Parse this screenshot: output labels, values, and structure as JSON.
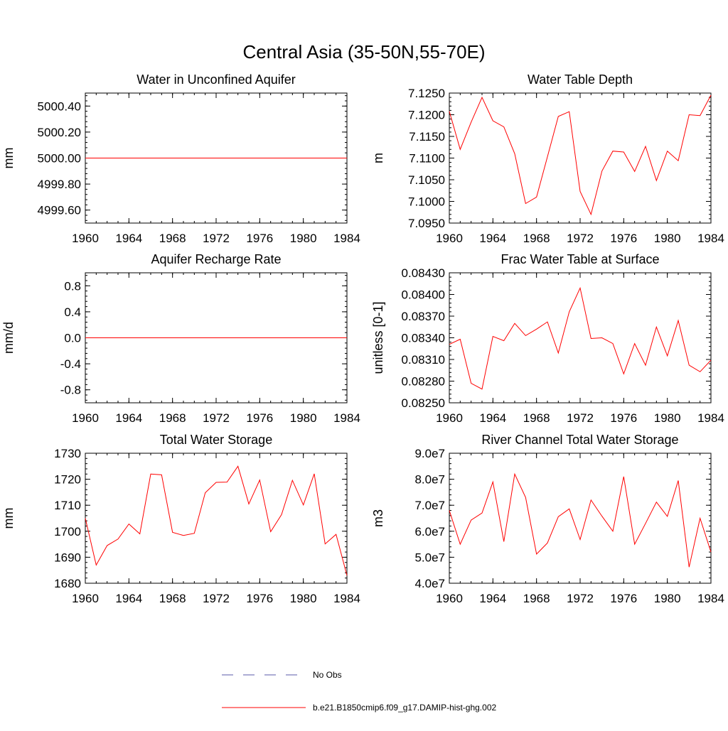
{
  "figure": {
    "title": "Central Asia (35-50N,55-70E)"
  },
  "legend": {
    "entries": [
      {
        "label": "No Obs",
        "color": "#5a5aa8",
        "style": "dashed"
      },
      {
        "label": "b.e21.B1850cmip6.f09_g17.DAMIP-hist-ghg.002",
        "color": "#ff0000",
        "style": "solid"
      }
    ]
  },
  "chart_data": [
    {
      "type": "line",
      "title": "Water in Unconfined Aquifer",
      "ylabel": "mm",
      "xlim": [
        1960,
        1984
      ],
      "ylim": [
        4999.5,
        5000.5
      ],
      "xticks": [
        1960,
        1964,
        1968,
        1972,
        1976,
        1980,
        1984
      ],
      "yticks": [
        4999.6,
        4999.8,
        5000.0,
        5000.2,
        5000.4
      ],
      "ytick_labels": [
        "4999.60",
        "4999.80",
        "5000.00",
        "5000.20",
        "5000.40"
      ],
      "series": [
        {
          "color": "#ff0000",
          "x": [
            1960,
            1961,
            1962,
            1963,
            1964,
            1965,
            1966,
            1967,
            1968,
            1969,
            1970,
            1971,
            1972,
            1973,
            1974,
            1975,
            1976,
            1977,
            1978,
            1979,
            1980,
            1981,
            1982,
            1983,
            1984
          ],
          "y": [
            5000,
            5000,
            5000,
            5000,
            5000,
            5000,
            5000,
            5000,
            5000,
            5000,
            5000,
            5000,
            5000,
            5000,
            5000,
            5000,
            5000,
            5000,
            5000,
            5000,
            5000,
            5000,
            5000,
            5000,
            5000
          ]
        }
      ]
    },
    {
      "type": "line",
      "title": "Water Table Depth",
      "ylabel": "m",
      "xlim": [
        1960,
        1984
      ],
      "ylim": [
        7.095,
        7.125
      ],
      "xticks": [
        1960,
        1964,
        1968,
        1972,
        1976,
        1980,
        1984
      ],
      "yticks": [
        7.095,
        7.1,
        7.105,
        7.11,
        7.115,
        7.12,
        7.125
      ],
      "ytick_labels": [
        "7.0950",
        "7.1000",
        "7.1050",
        "7.1100",
        "7.1150",
        "7.1200",
        "7.1250"
      ],
      "series": [
        {
          "color": "#ff0000",
          "x": [
            1960,
            1961,
            1962,
            1963,
            1964,
            1965,
            1966,
            1967,
            1968,
            1969,
            1970,
            1971,
            1972,
            1973,
            1974,
            1975,
            1976,
            1977,
            1978,
            1979,
            1980,
            1981,
            1982,
            1983,
            1984
          ],
          "y": [
            7.1208,
            7.112,
            7.1183,
            7.124,
            7.1186,
            7.1172,
            7.111,
            7.0995,
            7.101,
            7.1103,
            7.1196,
            7.1207,
            7.1023,
            7.097,
            7.107,
            7.1116,
            7.1114,
            7.1069,
            7.1127,
            7.1048,
            7.1116,
            7.1094,
            7.12,
            7.1198,
            7.1245
          ]
        }
      ]
    },
    {
      "type": "line",
      "title": "Aquifer Recharge Rate",
      "ylabel": "mm/d",
      "xlim": [
        1960,
        1984
      ],
      "ylim": [
        -1.0,
        1.0
      ],
      "xticks": [
        1960,
        1964,
        1968,
        1972,
        1976,
        1980,
        1984
      ],
      "yticks": [
        -0.8,
        -0.4,
        0.0,
        0.4,
        0.8
      ],
      "ytick_labels": [
        "-0.8",
        "-0.4",
        "0.0",
        "0.4",
        "0.8"
      ],
      "series": [
        {
          "color": "#ff0000",
          "x": [
            1960,
            1961,
            1962,
            1963,
            1964,
            1965,
            1966,
            1967,
            1968,
            1969,
            1970,
            1971,
            1972,
            1973,
            1974,
            1975,
            1976,
            1977,
            1978,
            1979,
            1980,
            1981,
            1982,
            1983,
            1984
          ],
          "y": [
            0,
            0,
            0,
            0,
            0,
            0,
            0,
            0,
            0,
            0,
            0,
            0,
            0,
            0,
            0,
            0,
            0,
            0,
            0,
            0,
            0,
            0,
            0,
            0,
            0
          ]
        }
      ]
    },
    {
      "type": "line",
      "title": "Frac Water Table at Surface",
      "ylabel": "unitless [0-1]",
      "xlim": [
        1960,
        1984
      ],
      "ylim": [
        0.0825,
        0.0843
      ],
      "xticks": [
        1960,
        1964,
        1968,
        1972,
        1976,
        1980,
        1984
      ],
      "yticks": [
        0.0825,
        0.0828,
        0.0831,
        0.0834,
        0.0837,
        0.084,
        0.0843
      ],
      "ytick_labels": [
        "0.08250",
        "0.08280",
        "0.08310",
        "0.08340",
        "0.08370",
        "0.08400",
        "0.08430"
      ],
      "series": [
        {
          "color": "#ff0000",
          "x": [
            1960,
            1961,
            1962,
            1963,
            1964,
            1965,
            1966,
            1967,
            1968,
            1969,
            1970,
            1971,
            1972,
            1973,
            1974,
            1975,
            1976,
            1977,
            1978,
            1979,
            1980,
            1981,
            1982,
            1983,
            1984
          ],
          "y": [
            0.08331,
            0.08338,
            0.08277,
            0.08269,
            0.08342,
            0.08336,
            0.0836,
            0.08343,
            0.08352,
            0.08362,
            0.08319,
            0.08376,
            0.08409,
            0.08339,
            0.0834,
            0.08332,
            0.0829,
            0.08332,
            0.08302,
            0.08355,
            0.08315,
            0.08364,
            0.08302,
            0.08293,
            0.08309
          ]
        }
      ]
    },
    {
      "type": "line",
      "title": "Total Water Storage",
      "ylabel": "mm",
      "xlim": [
        1960,
        1984
      ],
      "ylim": [
        1680,
        1730
      ],
      "xticks": [
        1960,
        1964,
        1968,
        1972,
        1976,
        1980,
        1984
      ],
      "yticks": [
        1680,
        1690,
        1700,
        1710,
        1720,
        1730
      ],
      "ytick_labels": [
        "1680",
        "1690",
        "1700",
        "1710",
        "1720",
        "1730"
      ],
      "series": [
        {
          "color": "#ff0000",
          "x": [
            1960,
            1961,
            1962,
            1963,
            1964,
            1965,
            1966,
            1967,
            1968,
            1969,
            1970,
            1971,
            1972,
            1973,
            1974,
            1975,
            1976,
            1977,
            1978,
            1979,
            1980,
            1981,
            1982,
            1983,
            1984
          ],
          "y": [
            1705,
            1687,
            1694.5,
            1697,
            1702.8,
            1699,
            1722,
            1721.7,
            1699.6,
            1698.4,
            1699.2,
            1714.8,
            1718.8,
            1718.9,
            1725,
            1710.5,
            1719.7,
            1699.8,
            1706.4,
            1719.6,
            1710.1,
            1722.1,
            1695.1,
            1698.8,
            1683
          ]
        }
      ]
    },
    {
      "type": "line",
      "title": "River Channel Total Water Storage",
      "ylabel": "m3",
      "xlim": [
        1960,
        1984
      ],
      "ylim": [
        40000000.0,
        90000000.0
      ],
      "xticks": [
        1960,
        1964,
        1968,
        1972,
        1976,
        1980,
        1984
      ],
      "yticks": [
        40000000.0,
        50000000.0,
        60000000.0,
        70000000.0,
        80000000.0,
        90000000.0
      ],
      "ytick_labels": [
        "4.0e7",
        "5.0e7",
        "6.0e7",
        "7.0e7",
        "8.0e7",
        "9.0e7"
      ],
      "series": [
        {
          "color": "#ff0000",
          "x": [
            1960,
            1961,
            1962,
            1963,
            1964,
            1965,
            1966,
            1967,
            1968,
            1969,
            1970,
            1971,
            1972,
            1973,
            1974,
            1975,
            1976,
            1977,
            1978,
            1979,
            1980,
            1981,
            1982,
            1983,
            1984
          ],
          "y": [
            68000000.0,
            55000000.0,
            64300000.0,
            67000000.0,
            79000000.0,
            56000000.0,
            82000000.0,
            73000000.0,
            51200000.0,
            55500000.0,
            65600000.0,
            68600000.0,
            56800000.0,
            72000000.0,
            65800000.0,
            60000000.0,
            81000000.0,
            55000000.0,
            63000000.0,
            71200000.0,
            65700000.0,
            79500000.0,
            46200000.0,
            65000000.0,
            52000000.0
          ]
        }
      ]
    }
  ]
}
